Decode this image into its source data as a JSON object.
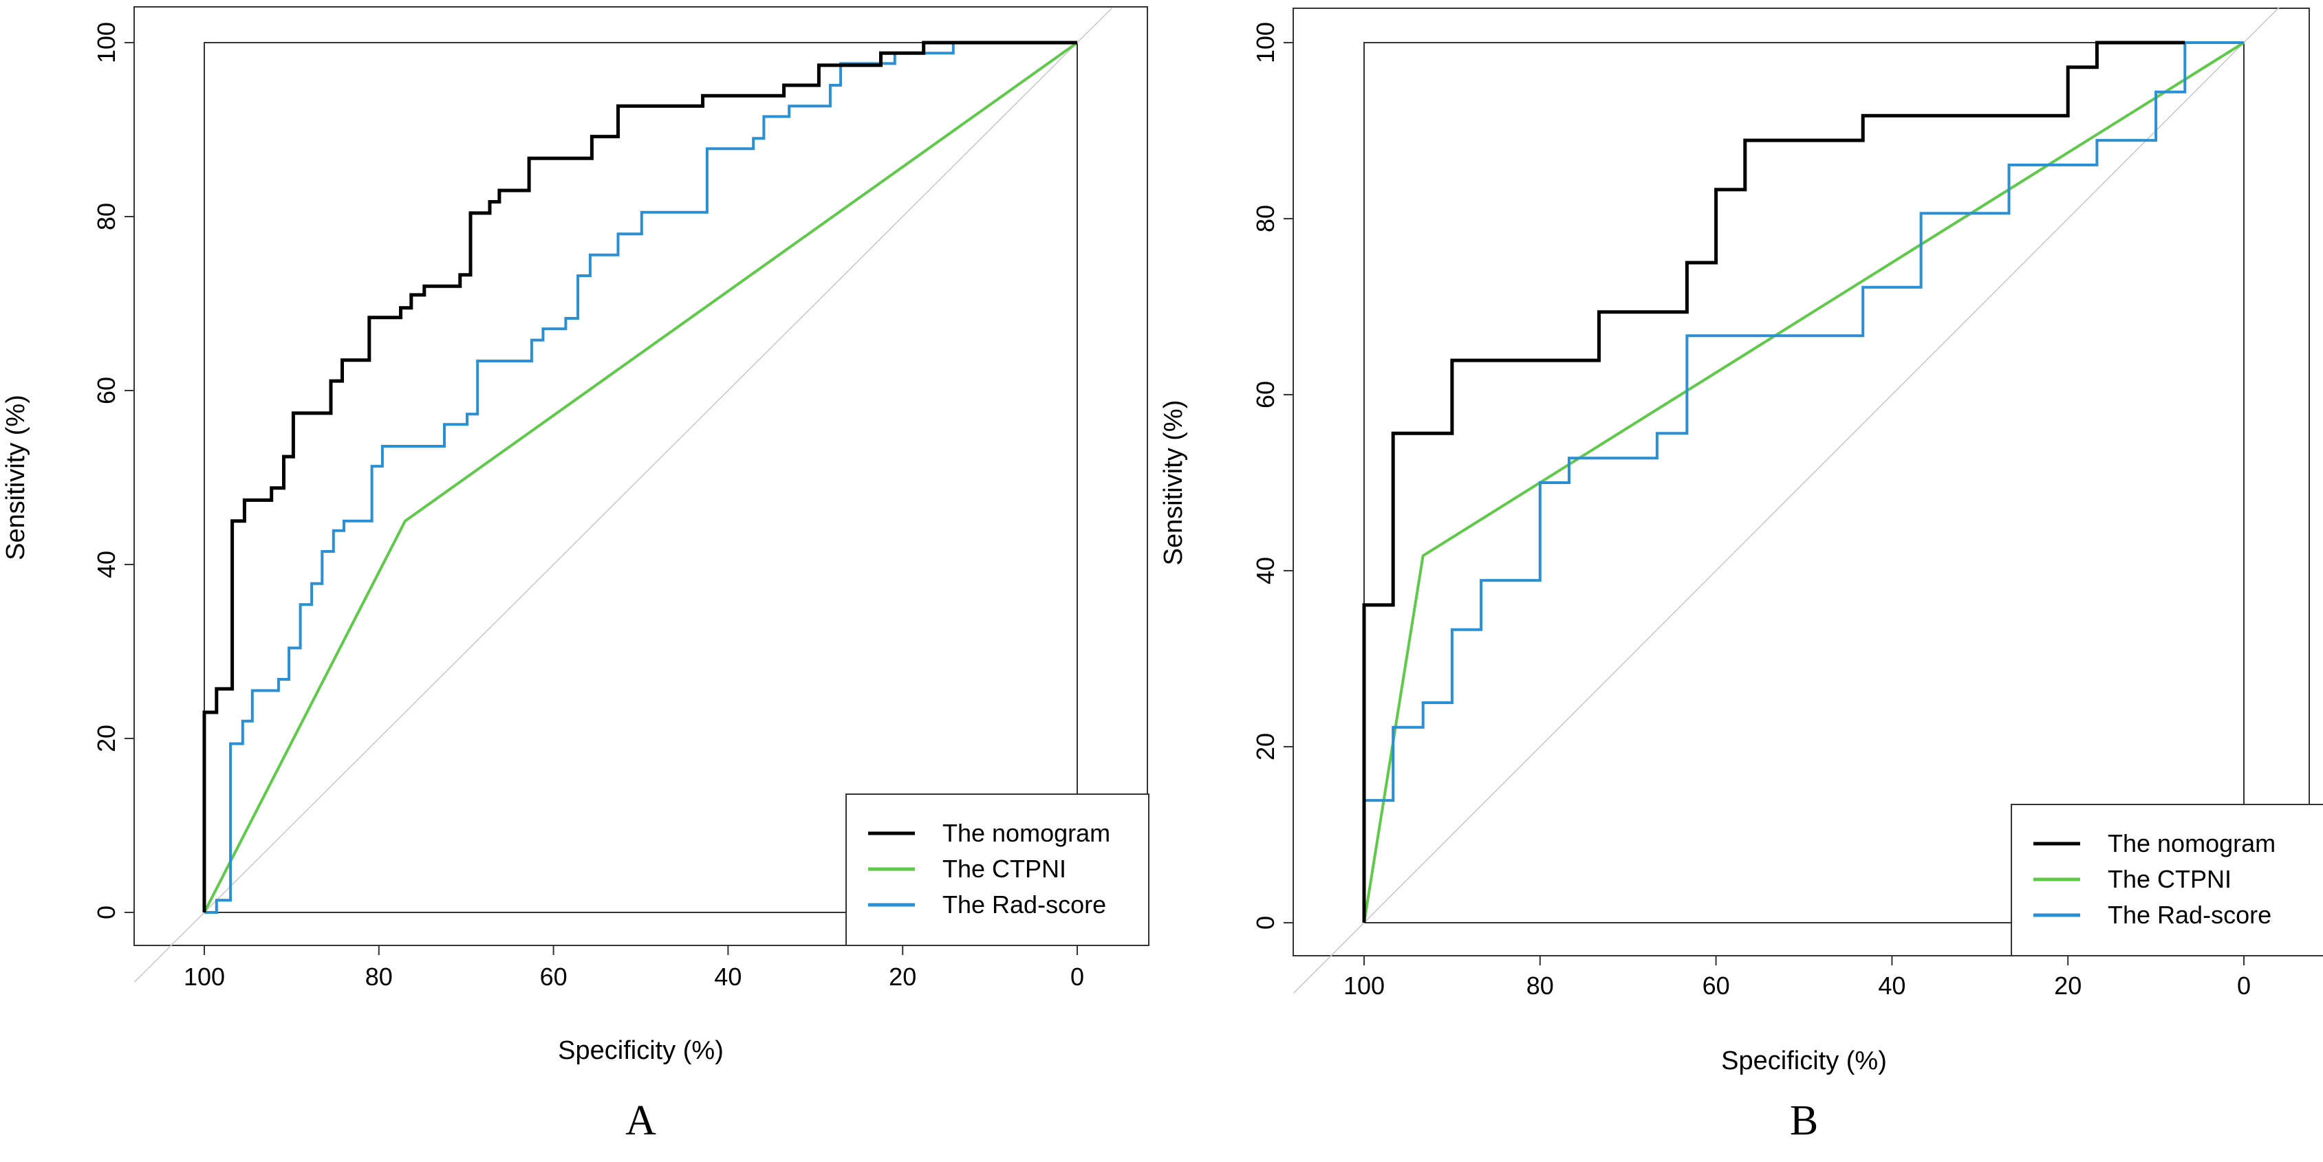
{
  "chart_data": [
    {
      "panel_label": "A",
      "type": "line",
      "xlabel": "Specificity (%)",
      "ylabel": "Sensitivity (%)",
      "xlim": [
        100,
        0
      ],
      "ylim": [
        0,
        100
      ],
      "x_ticks": [
        "100",
        "80",
        "60",
        "40",
        "20",
        "0"
      ],
      "y_ticks": [
        "0",
        "20",
        "40",
        "60",
        "80",
        "100"
      ],
      "legend_position": "bottom-right",
      "series": [
        {
          "name": "The nomogram",
          "color": "#000000",
          "points": [
            [
              100,
              0
            ],
            [
              100,
              23
            ],
            [
              98.6,
              23
            ],
            [
              98.6,
              25.7
            ],
            [
              96.8,
              25.7
            ],
            [
              96.8,
              45
            ],
            [
              95.4,
              45
            ],
            [
              95.4,
              47.4
            ],
            [
              92.3,
              47.4
            ],
            [
              92.3,
              48.8
            ],
            [
              90.9,
              48.8
            ],
            [
              90.9,
              52.4
            ],
            [
              89.8,
              52.4
            ],
            [
              89.8,
              57.4
            ],
            [
              85.5,
              57.4
            ],
            [
              85.5,
              61.1
            ],
            [
              84.2,
              61.1
            ],
            [
              84.2,
              63.5
            ],
            [
              81.1,
              63.5
            ],
            [
              81.1,
              68.4
            ],
            [
              77.5,
              68.4
            ],
            [
              77.5,
              69.5
            ],
            [
              76.3,
              69.5
            ],
            [
              76.3,
              71
            ],
            [
              74.8,
              71
            ],
            [
              74.8,
              72
            ],
            [
              70.7,
              72
            ],
            [
              70.7,
              73.3
            ],
            [
              69.5,
              73.3
            ],
            [
              69.5,
              80.4
            ],
            [
              67.3,
              80.4
            ],
            [
              67.3,
              81.7
            ],
            [
              66.2,
              81.7
            ],
            [
              66.2,
              83
            ],
            [
              62.8,
              83
            ],
            [
              62.8,
              86.7
            ],
            [
              55.6,
              86.7
            ],
            [
              55.6,
              89.2
            ],
            [
              52.6,
              89.2
            ],
            [
              52.6,
              92.7
            ],
            [
              42.9,
              92.7
            ],
            [
              42.9,
              93.9
            ],
            [
              33.6,
              93.9
            ],
            [
              33.6,
              95.1
            ],
            [
              29.6,
              95.1
            ],
            [
              29.6,
              97.4
            ],
            [
              22.5,
              97.4
            ],
            [
              22.5,
              98.8
            ],
            [
              17.6,
              98.8
            ],
            [
              17.6,
              100
            ],
            [
              15,
              100
            ],
            [
              0,
              100
            ]
          ]
        },
        {
          "name": "The CTPNI",
          "color": "#5fc94a",
          "points": [
            [
              100,
              0
            ],
            [
              77,
              45
            ],
            [
              0,
              100
            ]
          ]
        },
        {
          "name": "The Rad-score",
          "color": "#2a8fd4",
          "points": [
            [
              100,
              0
            ],
            [
              98.6,
              0
            ],
            [
              98.6,
              1.4
            ],
            [
              97,
              1.4
            ],
            [
              97,
              19.4
            ],
            [
              95.6,
              19.4
            ],
            [
              95.6,
              22
            ],
            [
              94.5,
              22
            ],
            [
              94.5,
              25.5
            ],
            [
              91.5,
              25.5
            ],
            [
              91.5,
              26.8
            ],
            [
              90.3,
              26.8
            ],
            [
              90.3,
              30.4
            ],
            [
              89,
              30.4
            ],
            [
              89,
              35.4
            ],
            [
              87.7,
              35.4
            ],
            [
              87.7,
              37.8
            ],
            [
              86.5,
              37.8
            ],
            [
              86.5,
              41.5
            ],
            [
              85.2,
              41.5
            ],
            [
              85.2,
              43.9
            ],
            [
              84,
              43.9
            ],
            [
              84,
              45
            ],
            [
              80.8,
              45
            ],
            [
              80.8,
              51.3
            ],
            [
              79.6,
              51.3
            ],
            [
              79.6,
              53.6
            ],
            [
              72.5,
              53.6
            ],
            [
              72.5,
              56.1
            ],
            [
              69.9,
              56.1
            ],
            [
              69.9,
              57.3
            ],
            [
              68.7,
              57.3
            ],
            [
              68.7,
              63.4
            ],
            [
              62.5,
              63.4
            ],
            [
              62.5,
              65.8
            ],
            [
              61.2,
              65.8
            ],
            [
              61.2,
              67.1
            ],
            [
              58.6,
              67.1
            ],
            [
              58.6,
              68.3
            ],
            [
              57.2,
              68.3
            ],
            [
              57.2,
              73.2
            ],
            [
              55.8,
              73.2
            ],
            [
              55.8,
              75.6
            ],
            [
              52.6,
              75.6
            ],
            [
              52.6,
              78
            ],
            [
              49.9,
              78
            ],
            [
              49.9,
              80.5
            ],
            [
              42.4,
              80.5
            ],
            [
              42.4,
              87.8
            ],
            [
              37.1,
              87.8
            ],
            [
              37.1,
              89
            ],
            [
              35.9,
              89
            ],
            [
              35.9,
              91.5
            ],
            [
              33,
              91.5
            ],
            [
              33,
              92.7
            ],
            [
              28.3,
              92.7
            ],
            [
              28.3,
              95.1
            ],
            [
              27.1,
              95.1
            ],
            [
              27.1,
              97.6
            ],
            [
              20.9,
              97.6
            ],
            [
              20.9,
              98.8
            ],
            [
              14.2,
              98.8
            ],
            [
              14.2,
              100
            ],
            [
              0,
              100
            ]
          ]
        }
      ]
    },
    {
      "panel_label": "B",
      "type": "line",
      "xlabel": "Specificity (%)",
      "ylabel": "Sensitivity (%)",
      "xlim": [
        100,
        0
      ],
      "ylim": [
        0,
        100
      ],
      "x_ticks": [
        "100",
        "80",
        "60",
        "40",
        "20",
        "0"
      ],
      "y_ticks": [
        "0",
        "20",
        "40",
        "60",
        "80",
        "100"
      ],
      "legend_position": "bottom-right",
      "series": [
        {
          "name": "The nomogram",
          "color": "#000000",
          "points": [
            [
              100,
              0
            ],
            [
              100,
              36.1
            ],
            [
              96.7,
              36.1
            ],
            [
              96.7,
              55.6
            ],
            [
              90,
              55.6
            ],
            [
              90,
              63.9
            ],
            [
              73.3,
              63.9
            ],
            [
              73.3,
              69.4
            ],
            [
              63.3,
              69.4
            ],
            [
              63.3,
              75
            ],
            [
              60,
              75
            ],
            [
              60,
              83.3
            ],
            [
              56.7,
              83.3
            ],
            [
              56.7,
              88.9
            ],
            [
              43.3,
              88.9
            ],
            [
              43.3,
              91.7
            ],
            [
              20,
              91.7
            ],
            [
              20,
              97.2
            ],
            [
              16.7,
              97.2
            ],
            [
              16.7,
              100
            ],
            [
              6.7,
              100
            ]
          ]
        },
        {
          "name": "The CTPNI",
          "color": "#5fc94a",
          "points": [
            [
              100,
              0
            ],
            [
              93.3,
              41.7
            ],
            [
              0,
              100
            ]
          ]
        },
        {
          "name": "The Rad-score",
          "color": "#2a8fd4",
          "points": [
            [
              100,
              0
            ],
            [
              100,
              13.9
            ],
            [
              96.7,
              13.9
            ],
            [
              96.7,
              22.2
            ],
            [
              93.3,
              22.2
            ],
            [
              93.3,
              25
            ],
            [
              90,
              25
            ],
            [
              90,
              33.3
            ],
            [
              86.7,
              33.3
            ],
            [
              86.7,
              38.9
            ],
            [
              80,
              38.9
            ],
            [
              80,
              50
            ],
            [
              76.7,
              50
            ],
            [
              76.7,
              52.8
            ],
            [
              66.7,
              52.8
            ],
            [
              66.7,
              55.6
            ],
            [
              63.3,
              55.6
            ],
            [
              63.3,
              66.7
            ],
            [
              43.3,
              66.7
            ],
            [
              43.3,
              72.2
            ],
            [
              36.7,
              72.2
            ],
            [
              36.7,
              80.6
            ],
            [
              26.7,
              80.6
            ],
            [
              26.7,
              86.1
            ],
            [
              16.7,
              86.1
            ],
            [
              16.7,
              88.9
            ],
            [
              10,
              88.9
            ],
            [
              10,
              94.4
            ],
            [
              6.7,
              94.4
            ],
            [
              6.7,
              100
            ],
            [
              0,
              100
            ]
          ]
        }
      ]
    }
  ]
}
